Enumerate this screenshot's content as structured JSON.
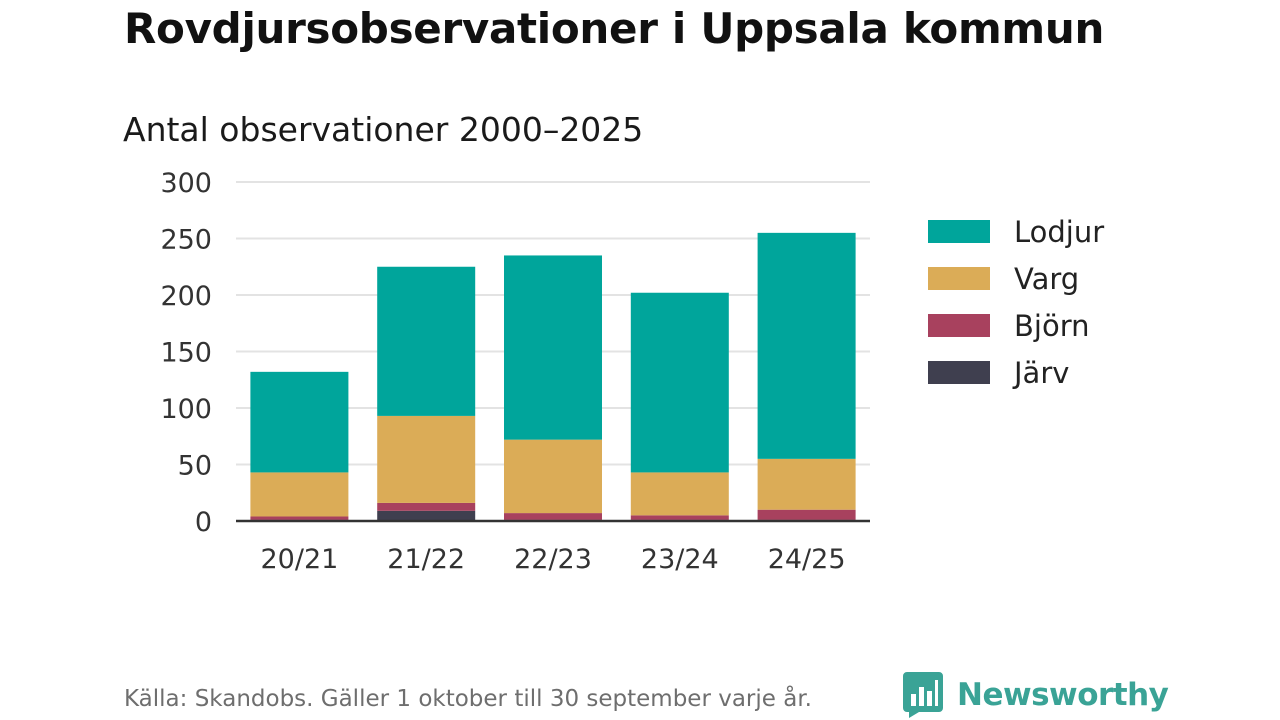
{
  "title": "Rovdjursobservationer i Uppsala kommun",
  "subtitle": "Antal observationer 2000–2025",
  "source": "Källa: Skandobs. Gäller 1 oktober till 30 september varje år.",
  "brand": {
    "name": "Newsworthy",
    "icon": "newsworthy-logo-icon",
    "color": "#3aa396"
  },
  "chart_data": {
    "type": "bar",
    "stacked": true,
    "title": "Antal observationer 2000–2025",
    "xlabel": "",
    "ylabel": "",
    "ylim": [
      0,
      300
    ],
    "yticks": [
      0,
      50,
      100,
      150,
      200,
      250,
      300
    ],
    "grid": true,
    "legend_position": "right",
    "categories": [
      "20/21",
      "21/22",
      "22/23",
      "23/24",
      "24/25"
    ],
    "series": [
      {
        "name": "Järv",
        "color": "#3f3f4f",
        "values": [
          1,
          9,
          1,
          1,
          1
        ]
      },
      {
        "name": "Björn",
        "color": "#a8415e",
        "values": [
          3,
          7,
          6,
          4,
          9
        ]
      },
      {
        "name": "Varg",
        "color": "#dbac57",
        "values": [
          39,
          77,
          65,
          38,
          45
        ]
      },
      {
        "name": "Lodjur",
        "color": "#00a59b",
        "values": [
          89,
          132,
          163,
          159,
          200
        ]
      }
    ],
    "legend_order": [
      "Lodjur",
      "Varg",
      "Björn",
      "Järv"
    ]
  }
}
